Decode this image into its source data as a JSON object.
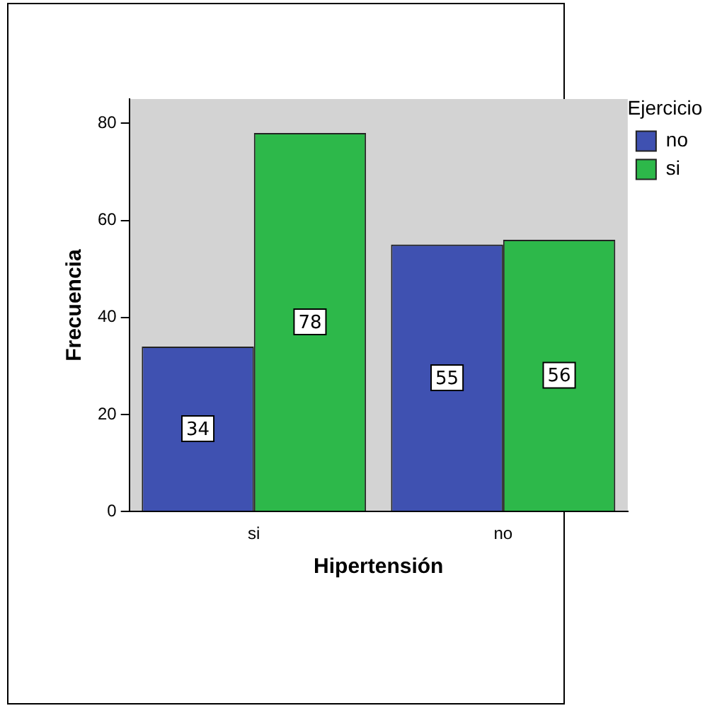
{
  "chart_data": {
    "type": "bar",
    "xlabel": "Hipertensión",
    "ylabel": "Frecuencia",
    "legend_title": "Ejercicio",
    "categories": [
      "si",
      "no"
    ],
    "series": [
      {
        "name": "no",
        "color": "#3f51b1",
        "values": [
          34,
          55
        ]
      },
      {
        "name": "si",
        "color": "#2db84a",
        "values": [
          78,
          56
        ]
      }
    ],
    "ylim": [
      0,
      85
    ],
    "yticks": [
      0,
      20,
      40,
      60,
      80
    ],
    "grid": false,
    "legend": "top right",
    "data_labels": true
  }
}
